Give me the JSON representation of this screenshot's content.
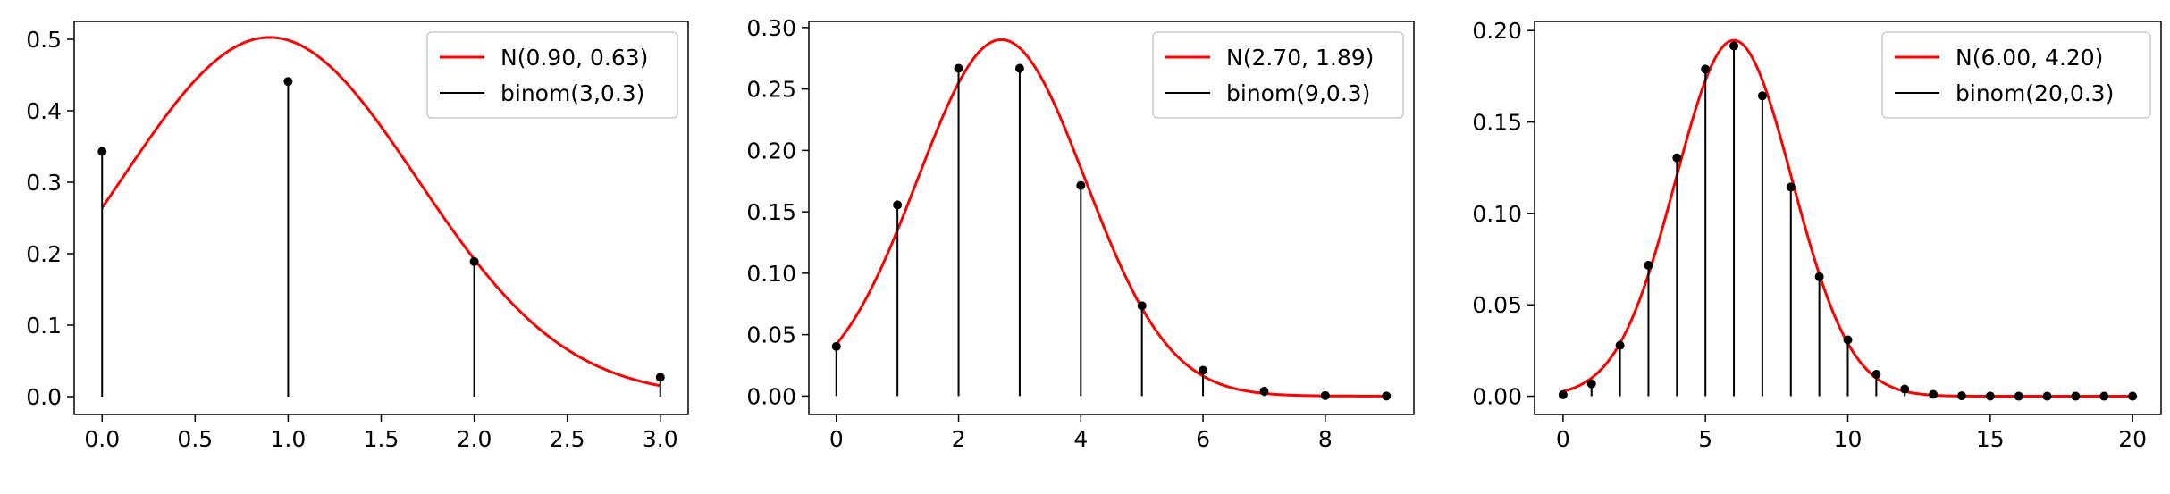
{
  "chart_data": [
    {
      "type": "line",
      "title": "",
      "xlabel": "",
      "ylabel": "",
      "xlim": [
        -0.15,
        3.15
      ],
      "ylim": [
        -0.025,
        0.525
      ],
      "xticks": [
        0,
        0.5,
        1,
        1.5,
        2,
        2.5,
        3
      ],
      "xtick_labels": [
        "0.0",
        "0.5",
        "1.0",
        "1.5",
        "2.0",
        "2.5",
        "3.0"
      ],
      "yticks": [
        0,
        0.1,
        0.2,
        0.3,
        0.4,
        0.5
      ],
      "ytick_labels": [
        "0.0",
        "0.1",
        "0.2",
        "0.3",
        "0.4",
        "0.5"
      ],
      "grid": false,
      "legend_position": "top-right",
      "series": [
        {
          "name": "N(0.90, 0.63)",
          "kind": "normal-curve",
          "mean": 0.9,
          "variance": 0.63,
          "x_range": [
            0,
            3
          ],
          "color": "#ff0000"
        },
        {
          "name": "binom(3,0.3)",
          "kind": "stem",
          "color": "#000000",
          "x": [
            0,
            1,
            2,
            3
          ],
          "y": [
            0.343,
            0.441,
            0.189,
            0.027
          ]
        }
      ]
    },
    {
      "type": "line",
      "title": "",
      "xlabel": "",
      "ylabel": "",
      "xlim": [
        -0.45,
        9.45
      ],
      "ylim": [
        -0.015,
        0.305
      ],
      "xticks": [
        0,
        2,
        4,
        6,
        8
      ],
      "xtick_labels": [
        "0",
        "2",
        "4",
        "6",
        "8"
      ],
      "yticks": [
        0,
        0.05,
        0.1,
        0.15,
        0.2,
        0.25,
        0.3
      ],
      "ytick_labels": [
        "0.00",
        "0.05",
        "0.10",
        "0.15",
        "0.20",
        "0.25",
        "0.30"
      ],
      "grid": false,
      "legend_position": "top-right",
      "series": [
        {
          "name": "N(2.70, 1.89)",
          "kind": "normal-curve",
          "mean": 2.7,
          "variance": 1.89,
          "x_range": [
            0,
            9
          ],
          "color": "#ff0000"
        },
        {
          "name": "binom(9,0.3)",
          "kind": "stem",
          "color": "#000000",
          "x": [
            0,
            1,
            2,
            3,
            4,
            5,
            6,
            7,
            8,
            9
          ],
          "y": [
            0.0404,
            0.1556,
            0.2668,
            0.2668,
            0.1715,
            0.0735,
            0.021,
            0.0039,
            0.0004,
            2e-05
          ]
        }
      ]
    },
    {
      "type": "line",
      "title": "",
      "xlabel": "",
      "ylabel": "",
      "xlim": [
        -1.0,
        21.0
      ],
      "ylim": [
        -0.01,
        0.205
      ],
      "xticks": [
        0,
        5,
        10,
        15,
        20
      ],
      "xtick_labels": [
        "0",
        "5",
        "10",
        "15",
        "20"
      ],
      "yticks": [
        0,
        0.05,
        0.1,
        0.15,
        0.2
      ],
      "ytick_labels": [
        "0.00",
        "0.05",
        "0.10",
        "0.15",
        "0.20"
      ],
      "grid": false,
      "legend_position": "top-right",
      "series": [
        {
          "name": "N(6.00, 4.20)",
          "kind": "normal-curve",
          "mean": 6.0,
          "variance": 4.2,
          "x_range": [
            0,
            20
          ],
          "color": "#ff0000"
        },
        {
          "name": "binom(20,0.3)",
          "kind": "stem",
          "color": "#000000",
          "x": [
            0,
            1,
            2,
            3,
            4,
            5,
            6,
            7,
            8,
            9,
            10,
            11,
            12,
            13,
            14,
            15,
            16,
            17,
            18,
            19,
            20
          ],
          "y": [
            0.0008,
            0.0068,
            0.0278,
            0.0716,
            0.1304,
            0.1789,
            0.1916,
            0.1643,
            0.1144,
            0.0654,
            0.0308,
            0.012,
            0.0039,
            0.001,
            0.0002,
            4e-05,
            0.0,
            0.0,
            0.0,
            0.0,
            0.0
          ]
        }
      ]
    }
  ]
}
